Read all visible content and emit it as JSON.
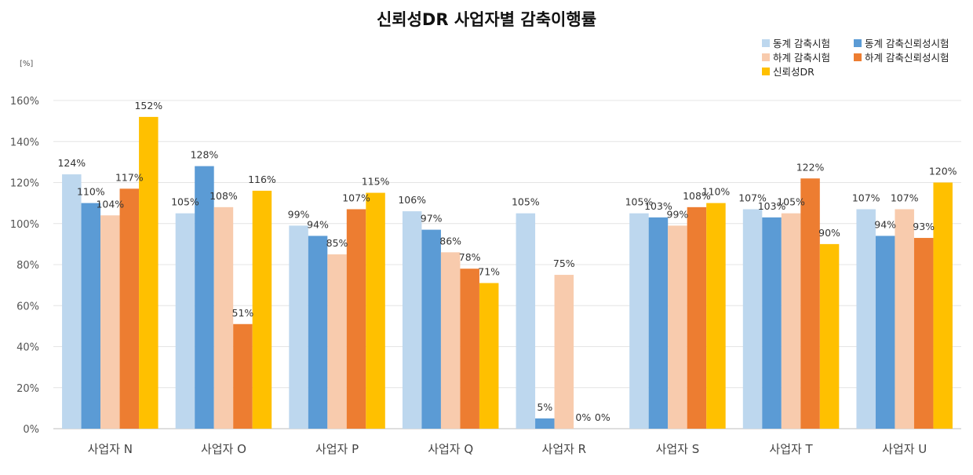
{
  "chart_data": {
    "type": "bar",
    "title": "신뢰성DR 사업자별 감축이행률",
    "ylabel": "[%]",
    "xlabel": "",
    "ylim": [
      0,
      160
    ],
    "yticks": [
      "0%",
      "20%",
      "40%",
      "60%",
      "80%",
      "100%",
      "120%",
      "140%",
      "160%"
    ],
    "grid": true,
    "legend_position": "top-right",
    "categories": [
      "사업자 N",
      "사업자 O",
      "사업자 P",
      "사업자 Q",
      "사업자 R",
      "사업자 S",
      "사업자 T",
      "사업자 U"
    ],
    "series": [
      {
        "name": "동계 감축시험",
        "color": "#bdd7ee",
        "values": [
          124,
          105,
          99,
          106,
          105,
          105,
          107,
          107
        ],
        "labels": [
          "124%",
          "105%",
          "99%",
          "106%",
          "105%",
          "105%",
          "107%",
          "107%"
        ]
      },
      {
        "name": "동계 감축신뢰성시험",
        "color": "#5b9bd5",
        "values": [
          110,
          128,
          94,
          97,
          5,
          103,
          103,
          94
        ],
        "labels": [
          "110%",
          "128%",
          "94%",
          "97%",
          "5%",
          "103%",
          "103%",
          "94%"
        ]
      },
      {
        "name": "하계 감축시험",
        "color": "#f8cbad",
        "values": [
          104,
          108,
          85,
          86,
          75,
          99,
          105,
          107
        ],
        "labels": [
          "104%",
          "108%",
          "85%",
          "86%",
          "75%",
          "99%",
          "105%",
          "107%"
        ]
      },
      {
        "name": "하계 감축신뢰성시험",
        "color": "#ed7d31",
        "values": [
          117,
          51,
          107,
          78,
          0,
          108,
          122,
          93
        ],
        "labels": [
          "117%",
          "51%",
          "107%",
          "78%",
          "0%",
          "108%",
          "122%",
          "93%"
        ]
      },
      {
        "name": "신뢰성DR",
        "color": "#ffc000",
        "values": [
          152,
          116,
          115,
          71,
          0,
          110,
          90,
          120
        ],
        "labels": [
          "152%",
          "116%",
          "115%",
          "71%",
          "0%",
          "110%",
          "90%",
          "120%"
        ]
      }
    ]
  }
}
